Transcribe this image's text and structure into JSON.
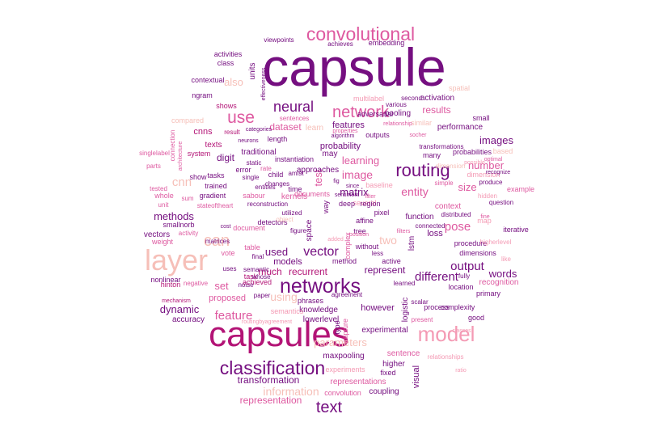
{
  "palette": {
    "dark_purple": "#750f80",
    "purple": "#8a1778",
    "magenta": "#b31476",
    "pink": "#de59a0",
    "light_pink": "#f49ab4",
    "salmon": "#f6bfb8",
    "pale": "#fbe1dc",
    "ink": "#4a0a5c"
  },
  "words": [
    {
      "text": "capsule"
    },
    {
      "text": "capsules"
    },
    {
      "text": "layer"
    },
    {
      "text": "networks"
    },
    {
      "text": "classification"
    },
    {
      "text": "model"
    },
    {
      "text": "routing"
    },
    {
      "text": "convolutional"
    },
    {
      "text": "network"
    },
    {
      "text": "neural"
    },
    {
      "text": "use"
    },
    {
      "text": "can"
    },
    {
      "text": "text"
    },
    {
      "text": "vector"
    },
    {
      "text": "different"
    },
    {
      "text": "feature"
    },
    {
      "text": "parameters"
    },
    {
      "text": "output"
    },
    {
      "text": "transformation"
    },
    {
      "text": "information"
    },
    {
      "text": "representation"
    },
    {
      "text": "matrix"
    },
    {
      "text": "image"
    },
    {
      "text": "entity"
    },
    {
      "text": "pose"
    },
    {
      "text": "dynamic"
    },
    {
      "text": "cnn"
    },
    {
      "text": "used"
    },
    {
      "text": "words"
    },
    {
      "text": "learning"
    },
    {
      "text": "images"
    },
    {
      "text": "methods"
    },
    {
      "text": "set"
    },
    {
      "text": "dataset"
    },
    {
      "text": "results"
    },
    {
      "text": "test"
    },
    {
      "text": "also"
    },
    {
      "text": "using"
    },
    {
      "text": "two"
    },
    {
      "text": "number"
    },
    {
      "text": "size"
    },
    {
      "text": "digit"
    },
    {
      "text": "much"
    },
    {
      "text": "recurrent"
    },
    {
      "text": "represent"
    },
    {
      "text": "features"
    },
    {
      "text": "probability"
    },
    {
      "text": "approaches"
    },
    {
      "text": "cnns"
    },
    {
      "text": "texts"
    },
    {
      "text": "accuracy"
    },
    {
      "text": "vectors"
    },
    {
      "text": "weight"
    },
    {
      "text": "models"
    },
    {
      "text": "proposed"
    },
    {
      "text": "however"
    },
    {
      "text": "knowledge"
    },
    {
      "text": "lowerlevel"
    },
    {
      "text": "experimental"
    },
    {
      "text": "maxpooling"
    },
    {
      "text": "higher"
    },
    {
      "text": "fixed"
    },
    {
      "text": "representations"
    },
    {
      "text": "experiments"
    },
    {
      "text": "coupling"
    },
    {
      "text": "convolution"
    },
    {
      "text": "sentence"
    },
    {
      "text": "visual"
    },
    {
      "text": "loss"
    },
    {
      "text": "function"
    },
    {
      "text": "context"
    },
    {
      "text": "performance"
    },
    {
      "text": "small"
    },
    {
      "text": "pooling"
    },
    {
      "text": "activation"
    },
    {
      "text": "several"
    },
    {
      "text": "outputs"
    },
    {
      "text": "adversarial"
    },
    {
      "text": "spatial"
    },
    {
      "text": "embedding"
    },
    {
      "text": "achieves"
    },
    {
      "text": "viewpoints"
    },
    {
      "text": "activities"
    },
    {
      "text": "class"
    },
    {
      "text": "contextual"
    },
    {
      "text": "ngram"
    },
    {
      "text": "shows"
    },
    {
      "text": "units"
    },
    {
      "text": "compared"
    },
    {
      "text": "result"
    },
    {
      "text": "system"
    },
    {
      "text": "traditional"
    },
    {
      "text": "length"
    },
    {
      "text": "time"
    },
    {
      "text": "instantiation"
    },
    {
      "text": "may"
    },
    {
      "text": "multilabel"
    },
    {
      "text": "second"
    },
    {
      "text": "various"
    },
    {
      "text": "learn"
    },
    {
      "text": "similar"
    },
    {
      "text": "transformations"
    },
    {
      "text": "many"
    },
    {
      "text": "probabilities"
    },
    {
      "text": "based"
    },
    {
      "text": "dimension"
    },
    {
      "text": "produce"
    },
    {
      "text": "example"
    },
    {
      "text": "question"
    },
    {
      "text": "hidden"
    },
    {
      "text": "map"
    },
    {
      "text": "iterative"
    },
    {
      "text": "procedure"
    },
    {
      "text": "dimensions"
    },
    {
      "text": "higherlevel"
    },
    {
      "text": "recognition"
    },
    {
      "text": "primary"
    },
    {
      "text": "location"
    },
    {
      "text": "complexity"
    },
    {
      "text": "process"
    },
    {
      "text": "logistic"
    },
    {
      "text": "scalar"
    },
    {
      "text": "present"
    },
    {
      "text": "good"
    },
    {
      "text": "singlelabel"
    },
    {
      "text": "parts"
    },
    {
      "text": "tested"
    },
    {
      "text": "whole"
    },
    {
      "text": "unit"
    },
    {
      "text": "sum"
    },
    {
      "text": "gradient"
    },
    {
      "text": "stateoftheart"
    },
    {
      "text": "smallnorb"
    },
    {
      "text": "activity"
    },
    {
      "text": "nonlinear"
    },
    {
      "text": "hinton"
    },
    {
      "text": "negative"
    },
    {
      "text": "mechanism"
    },
    {
      "text": "show"
    },
    {
      "text": "tasks"
    },
    {
      "text": "trained"
    },
    {
      "text": "entities"
    },
    {
      "text": "sabour"
    },
    {
      "text": "reconstruction"
    },
    {
      "text": "document"
    },
    {
      "text": "documents"
    },
    {
      "text": "detectors"
    },
    {
      "text": "table"
    },
    {
      "text": "final"
    },
    {
      "text": "semantic"
    },
    {
      "text": "task"
    },
    {
      "text": "whose"
    },
    {
      "text": "vote"
    },
    {
      "text": "uses"
    },
    {
      "text": "noise"
    },
    {
      "text": "paper"
    },
    {
      "text": "achieved"
    },
    {
      "text": "phrases"
    },
    {
      "text": "semantics"
    },
    {
      "text": "routingbyagreement"
    },
    {
      "text": "agreement"
    },
    {
      "text": "learned"
    },
    {
      "text": "active"
    },
    {
      "text": "without"
    },
    {
      "text": "less"
    },
    {
      "text": "method"
    },
    {
      "text": "affine"
    },
    {
      "text": "tree"
    },
    {
      "text": "figure"
    },
    {
      "text": "deep"
    },
    {
      "text": "region"
    },
    {
      "text": "sentiment"
    },
    {
      "text": "filter"
    },
    {
      "text": "pixel"
    },
    {
      "text": "baseline"
    },
    {
      "text": "lstm"
    },
    {
      "text": "connected"
    },
    {
      "text": "space"
    },
    {
      "text": "way"
    },
    {
      "text": "kernels"
    },
    {
      "text": "static"
    },
    {
      "text": "error"
    },
    {
      "text": "rate"
    },
    {
      "text": "child"
    },
    {
      "text": "changes"
    },
    {
      "text": "neurons"
    },
    {
      "text": "categories"
    },
    {
      "text": "connection"
    },
    {
      "text": "architecture"
    },
    {
      "text": "effectiveness"
    },
    {
      "text": "properties"
    },
    {
      "text": "sentences"
    },
    {
      "text": "algorithm"
    },
    {
      "text": "relationship"
    },
    {
      "text": "socher"
    },
    {
      "text": "since"
    },
    {
      "text": "possible"
    },
    {
      "text": "recognize"
    },
    {
      "text": "simple"
    },
    {
      "text": "distributed"
    },
    {
      "text": "fully"
    },
    {
      "text": "capture"
    },
    {
      "text": "complex"
    },
    {
      "text": "position"
    },
    {
      "text": "type"
    },
    {
      "text": "object"
    },
    {
      "text": "utilized"
    },
    {
      "text": "amist"
    },
    {
      "text": "single"
    },
    {
      "text": "fig"
    },
    {
      "text": "dimension"
    },
    {
      "text": "relationships"
    },
    {
      "text": "classes"
    },
    {
      "text": "filters"
    },
    {
      "text": "matrices"
    },
    {
      "text": "cost"
    },
    {
      "text": "added"
    },
    {
      "text": "like"
    },
    {
      "text": "optimal"
    },
    {
      "text": "fine"
    },
    {
      "text": "ratio"
    },
    {
      "text": "trans"
    }
  ]
}
